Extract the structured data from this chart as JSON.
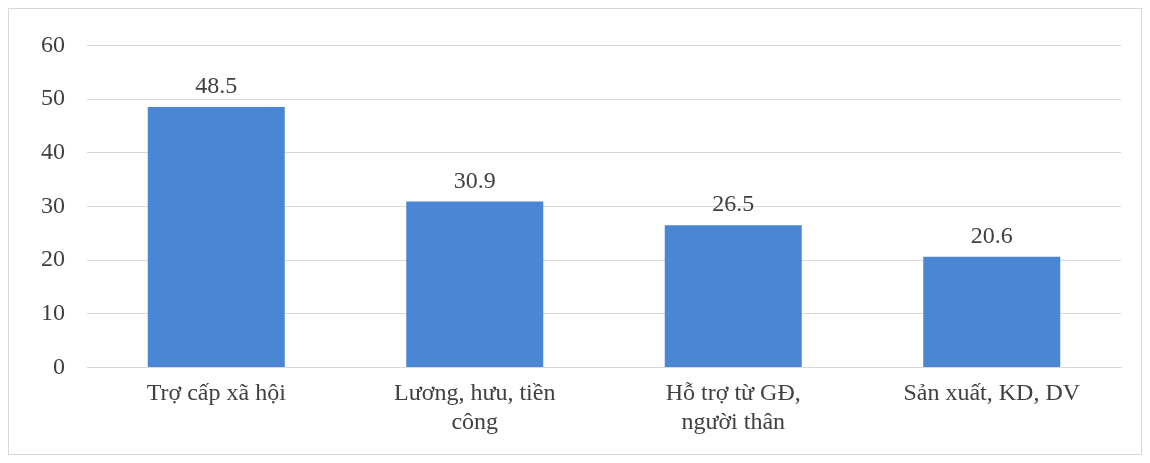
{
  "chart_data": {
    "type": "bar",
    "categories": [
      "Trợ cấp xã hội",
      "Lương, hưu, tiền công",
      "Hỗ trợ từ GĐ, người thân",
      "Sản xuất, KD, DV"
    ],
    "values": [
      48.5,
      30.9,
      26.5,
      20.6
    ],
    "color": "#4a86d4",
    "ylim": [
      0,
      60
    ],
    "yticks": [
      0,
      10,
      20,
      30,
      40,
      50,
      60
    ],
    "grid": "y",
    "data_labels": true,
    "legend": false
  }
}
